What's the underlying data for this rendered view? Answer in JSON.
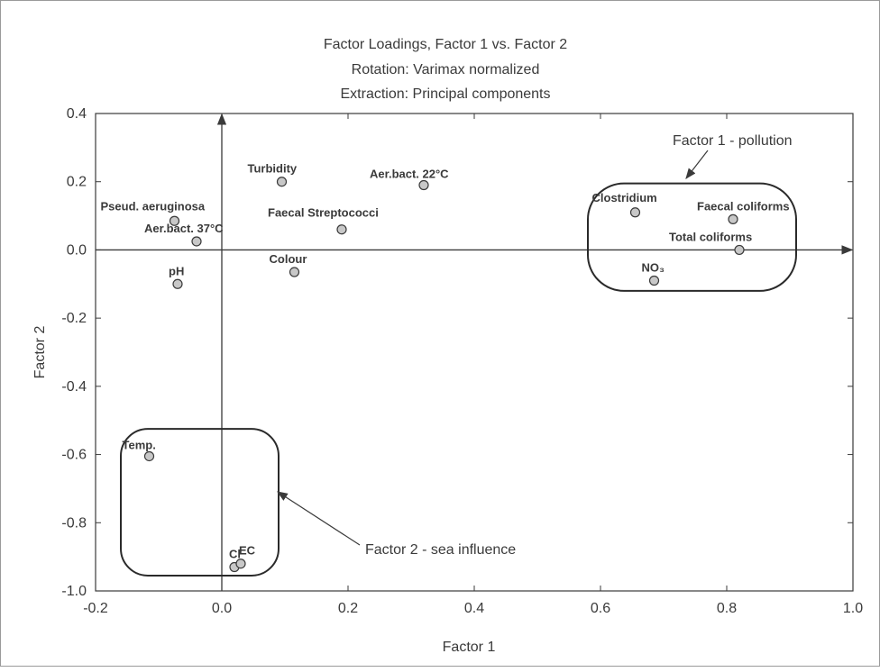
{
  "chart_data": {
    "type": "scatter",
    "title": "Factor Loadings, Factor 1 vs. Factor 2",
    "subtitle_lines": [
      "Rotation: Varimax normalized",
      "Extraction: Principal components"
    ],
    "xlabel": "Factor 1",
    "ylabel": "Factor 2",
    "xlim": [
      -0.2,
      1.0
    ],
    "ylim": [
      -1.0,
      0.4
    ],
    "x_ticks": [
      "-0.2",
      "0.0",
      "0.2",
      "0.4",
      "0.6",
      "0.8",
      "1.0"
    ],
    "y_ticks": [
      "0.4",
      "0.2",
      "0.0",
      "-0.2",
      "-0.4",
      "-0.6",
      "-0.8",
      "-1.0"
    ],
    "grid": false,
    "points": [
      {
        "label": "Pseud. aeruginosa",
        "x": -0.075,
        "y": 0.085
      },
      {
        "label": "Aer.bact. 37°C",
        "x": -0.04,
        "y": 0.025
      },
      {
        "label": "pH",
        "x": -0.07,
        "y": -0.1
      },
      {
        "label": "Turbidity",
        "x": 0.095,
        "y": 0.2
      },
      {
        "label": "Faecal Streptococci",
        "x": 0.19,
        "y": 0.06
      },
      {
        "label": "Colour",
        "x": 0.115,
        "y": -0.065
      },
      {
        "label": "Aer.bact. 22°C",
        "x": 0.32,
        "y": 0.19
      },
      {
        "label": "Clostridium",
        "x": 0.655,
        "y": 0.11
      },
      {
        "label": "Faecal coliforms",
        "x": 0.81,
        "y": 0.09
      },
      {
        "label": "Total coliforms",
        "x": 0.82,
        "y": 0.0
      },
      {
        "label": "NO₃",
        "x": 0.685,
        "y": -0.09
      },
      {
        "label": "Temp.",
        "x": -0.115,
        "y": -0.605
      },
      {
        "label": "Cl",
        "x": 0.02,
        "y": -0.93
      },
      {
        "label": "EC",
        "x": 0.03,
        "y": -0.92
      }
    ],
    "annotations": [
      {
        "text": "Factor 1 - pollution"
      },
      {
        "text": "Factor 2 - sea influence"
      }
    ]
  }
}
